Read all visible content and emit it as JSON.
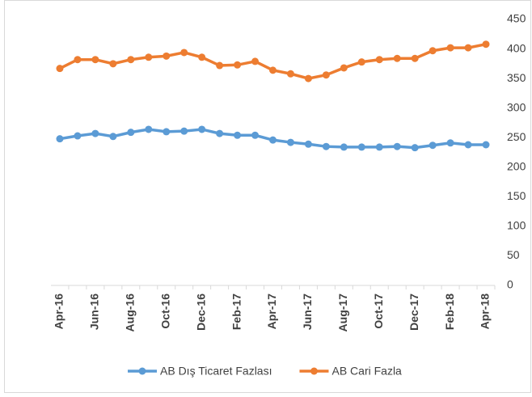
{
  "chart_data": {
    "type": "line",
    "categories": [
      "Apr-16",
      null,
      "Jun-16",
      null,
      "Aug-16",
      null,
      "Oct-16",
      null,
      "Dec-16",
      null,
      "Feb-17",
      null,
      "Apr-17",
      null,
      "Jun-17",
      null,
      "Aug-17",
      null,
      "Oct-17",
      null,
      "Dec-17",
      null,
      "Feb-18",
      null,
      "Apr-18"
    ],
    "series": [
      {
        "name": "AB Dış Ticaret Fazlası",
        "color": "#5b9bd5",
        "values": [
          248,
          253,
          257,
          252,
          259,
          264,
          260,
          261,
          264,
          257,
          254,
          254,
          246,
          242,
          239,
          235,
          234,
          234,
          234,
          235,
          233,
          237,
          241,
          238,
          238
        ]
      },
      {
        "name": "AB Cari Fazla",
        "color": "#ed7d31",
        "values": [
          367,
          382,
          382,
          375,
          382,
          386,
          388,
          394,
          386,
          372,
          373,
          379,
          364,
          358,
          350,
          356,
          368,
          378,
          382,
          384,
          384,
          397,
          402,
          402,
          408
        ]
      }
    ],
    "ylim": [
      0,
      450
    ],
    "yticks": [
      0,
      50,
      100,
      150,
      200,
      250,
      300,
      350,
      400,
      450
    ],
    "y_axis_side": "right",
    "legend": "bottom"
  }
}
